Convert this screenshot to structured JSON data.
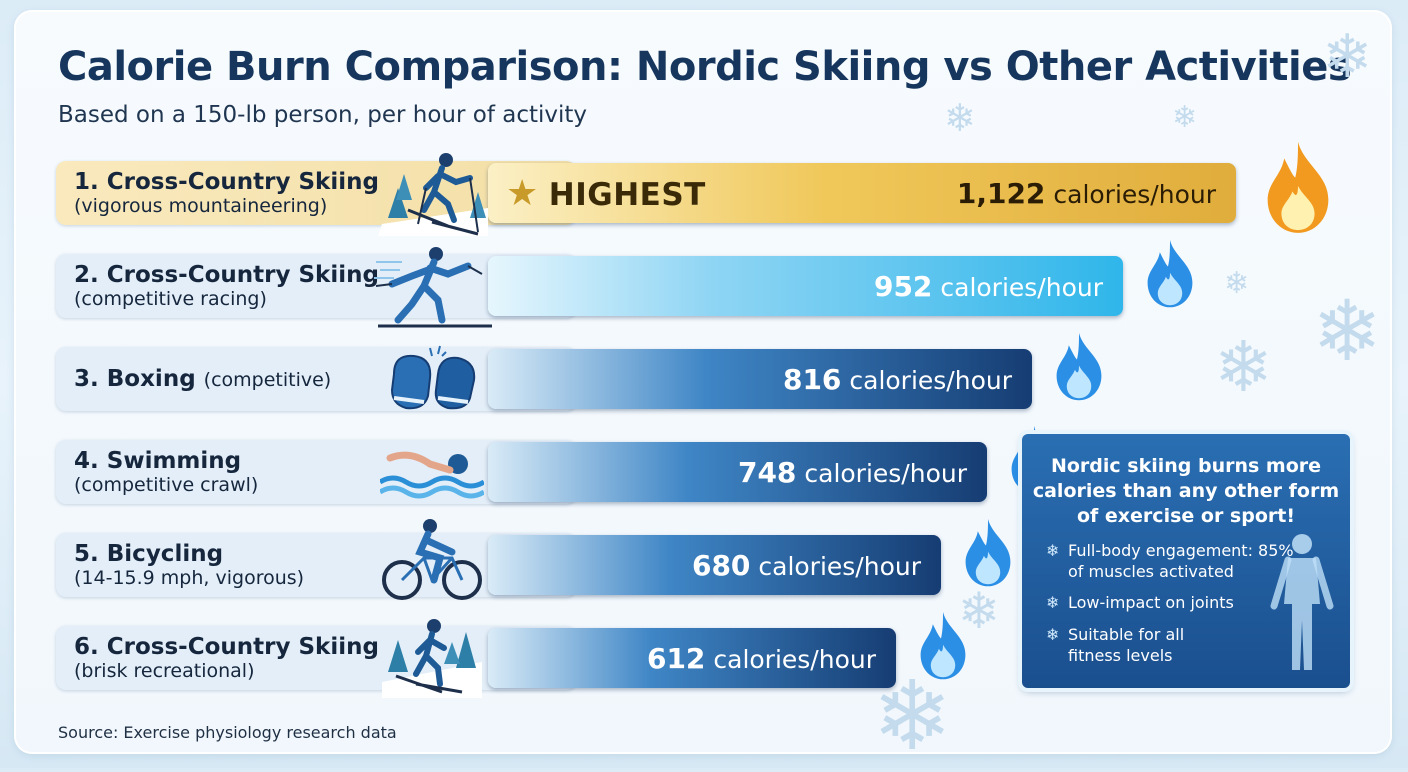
{
  "chart_data": {
    "type": "bar",
    "title": "Calorie Burn Comparison: Nordic Skiing vs Other Activities",
    "subtitle": "Based on a 150-lb person, per hour of activity",
    "value_unit": "calories/hour",
    "highlight_label": "HIGHEST",
    "categories": [
      {
        "rank": "1.",
        "name": "Cross-Country Skiing",
        "detail": "(vigorous mountaineering)",
        "icon": "skier-uphill-icon"
      },
      {
        "rank": "2.",
        "name": "Cross-Country Skiing",
        "detail": "(competitive racing)",
        "icon": "racing-skier-icon"
      },
      {
        "rank": "3.",
        "name": "Boxing",
        "detail": "(competitive)",
        "icon": "boxing-gloves-icon"
      },
      {
        "rank": "4.",
        "name": "Swimming",
        "detail": "(competitive crawl)",
        "icon": "swimmer-icon"
      },
      {
        "rank": "5.",
        "name": "Bicycling",
        "detail": "(14-15.9 mph, vigorous)",
        "icon": "cyclist-icon"
      },
      {
        "rank": "6.",
        "name": "Cross-Country Skiing",
        "detail": "(brisk recreational)",
        "icon": "recreational-skier-icon"
      }
    ],
    "values": [
      1122,
      952,
      816,
      748,
      680,
      612
    ],
    "value_labels": [
      "1,122",
      "952",
      "816",
      "748",
      "680",
      "612"
    ]
  },
  "info_box": {
    "heading": "Nordic skiing burns more calories than any other form of exercise or sport!",
    "points": [
      "Full-body engagement: 85% of muscles activated",
      "Low-impact on joints",
      "Suitable for all fitness levels"
    ]
  },
  "source": "Source: Exercise physiology research data",
  "colors": {
    "title": "#16365d",
    "gold_bar": "#f0c85a",
    "cyan_bar": "#2fb6ea",
    "navy_bar": "#163d73",
    "flame_blue": "#2b8fe6",
    "flame_gold": "#f29a1f"
  }
}
